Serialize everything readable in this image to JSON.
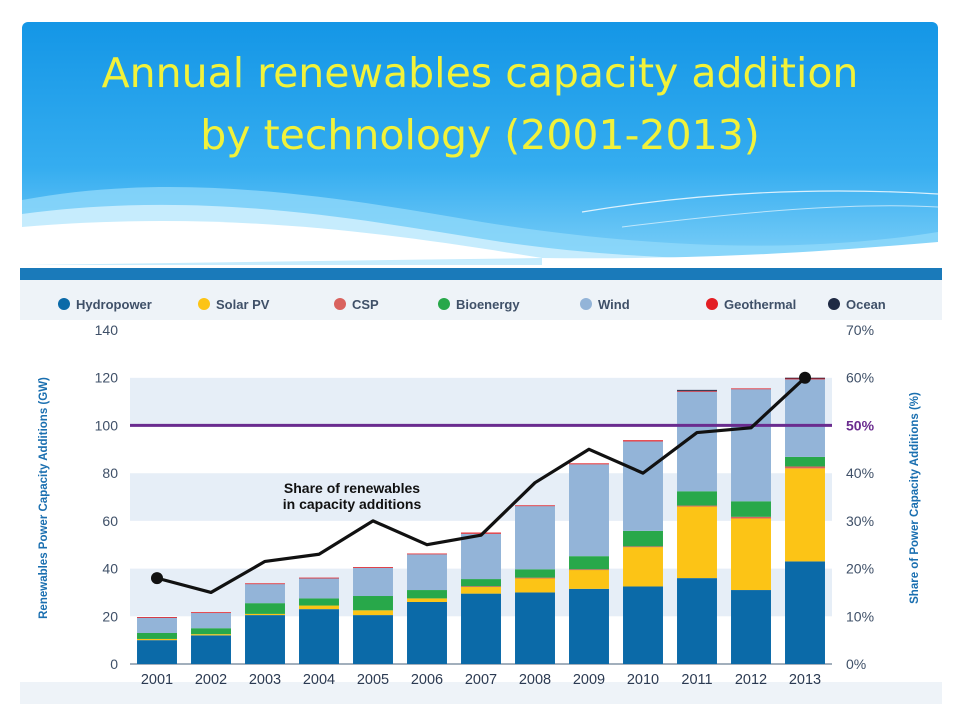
{
  "slide": {
    "title_line1": "Annual renewables capacity addition",
    "title_line2": "by technology (2001-2013)"
  },
  "chart_data": {
    "type": "bar",
    "stacked": true,
    "categories": [
      "2001",
      "2002",
      "2003",
      "2004",
      "2005",
      "2006",
      "2007",
      "2008",
      "2009",
      "2010",
      "2011",
      "2012",
      "2013"
    ],
    "series": [
      {
        "name": "Hydropower",
        "color": "#0b6aa8",
        "values": [
          10,
          12,
          20.5,
          23,
          20.5,
          26,
          29.5,
          30,
          31.5,
          32.5,
          36,
          31,
          43
        ]
      },
      {
        "name": "Solar PV",
        "color": "#fcc416",
        "values": [
          0.5,
          0.5,
          0.5,
          1.5,
          2,
          1.5,
          3,
          6,
          8,
          16.5,
          30,
          30,
          39
        ]
      },
      {
        "name": "CSP",
        "color": "#d9625e",
        "values": [
          0,
          0,
          0,
          0,
          0,
          0,
          0.1,
          0.2,
          0.2,
          0.3,
          0.4,
          0.7,
          0.8
        ]
      },
      {
        "name": "Bioenergy",
        "color": "#28a84a",
        "values": [
          2.5,
          2.5,
          4.5,
          3,
          6,
          3.5,
          3,
          3.5,
          5.5,
          6.5,
          6,
          6.5,
          4
        ]
      },
      {
        "name": "Wind",
        "color": "#93b4d8",
        "values": [
          6.5,
          6.5,
          8,
          8.5,
          12,
          15,
          19,
          26.5,
          38.5,
          37.5,
          42,
          47,
          32.5
        ]
      },
      {
        "name": "Geothermal",
        "color": "#e31e24",
        "values": [
          0.2,
          0.2,
          0.3,
          0.2,
          0.1,
          0.3,
          0.5,
          0.3,
          0.4,
          0.5,
          0.1,
          0.3,
          0.6
        ]
      },
      {
        "name": "Ocean",
        "color": "#1f2a44",
        "values": [
          0,
          0,
          0,
          0,
          0,
          0,
          0,
          0,
          0,
          0,
          0.4,
          0,
          0.1
        ]
      }
    ],
    "share_line": {
      "name": "Share of renewables in capacity additions",
      "values": [
        18,
        15,
        21.5,
        23,
        30,
        25,
        27,
        38,
        45,
        40,
        48.5,
        49.5,
        60
      ]
    },
    "reference_line": {
      "value": 50,
      "label": "50%",
      "color": "#6a2c8f"
    },
    "annotation_line1": "Share of renewables",
    "annotation_line2": "in capacity additions",
    "ylabel": "Renewables Power Capacity Additions (GW)",
    "y2label": "Share of Power Capacity Additions (%)",
    "ylim": [
      0,
      140
    ],
    "y2lim": [
      0,
      70
    ],
    "yticks": [
      "0",
      "20",
      "40",
      "60",
      "80",
      "100",
      "120",
      "140"
    ],
    "y2ticks": [
      "0%",
      "10%",
      "20%",
      "30%",
      "40%",
      "50%",
      "60%",
      "70%"
    ],
    "legend_position": "top",
    "grid": "alternating horizontal bands"
  }
}
